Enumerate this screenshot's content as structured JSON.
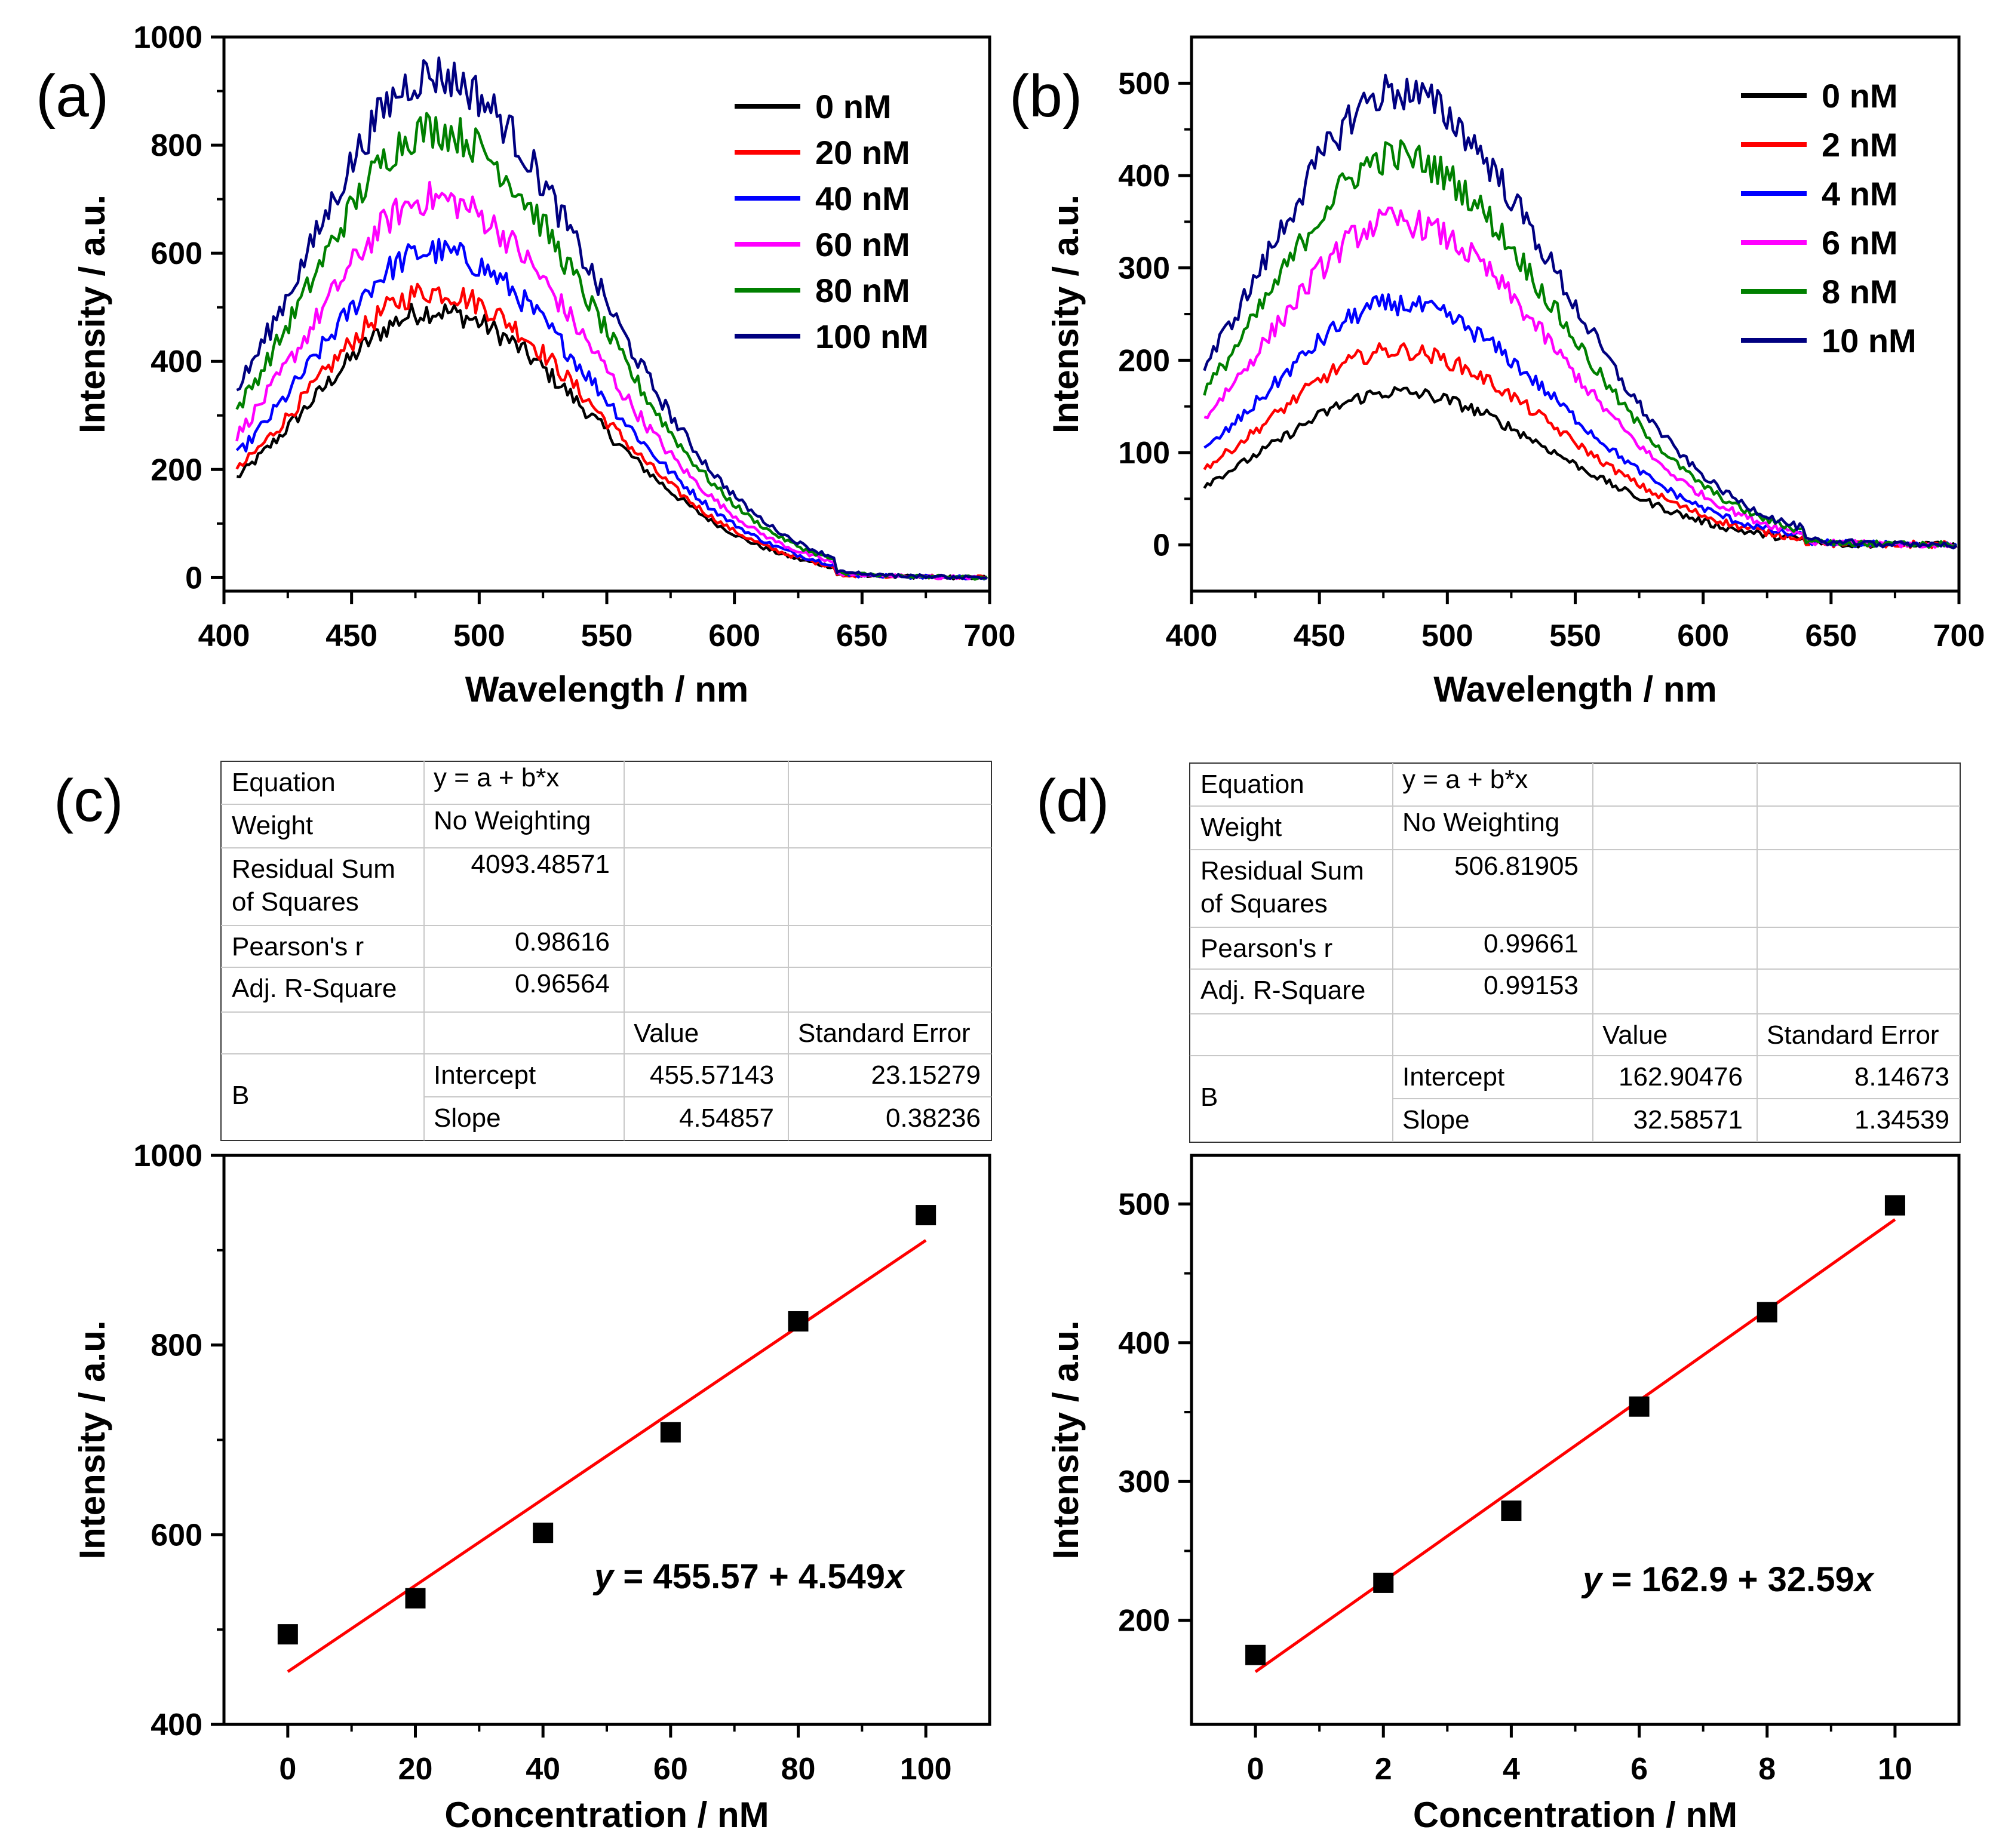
{
  "chart_data": [
    {
      "id": "a",
      "panel_label": "(a)",
      "type": "line",
      "xlabel": "Wavelength / nm",
      "ylabel": "Intensity / a.u.",
      "xlim": [
        400,
        700
      ],
      "ylim": [
        -25,
        1000
      ],
      "xticks": [
        400,
        450,
        500,
        550,
        600,
        650,
        700
      ],
      "yticks": [
        0,
        200,
        400,
        600,
        800,
        1000
      ],
      "legend_position": "top-right",
      "peak_wavelength": 482,
      "series": [
        {
          "name": "0   nM",
          "color": "#000000",
          "peak": 492
        },
        {
          "name": "20 nM",
          "color": "#ff0000",
          "peak": 528
        },
        {
          "name": "40 nM",
          "color": "#0000ff",
          "peak": 602
        },
        {
          "name": "60 nM",
          "color": "#ff00ff",
          "peak": 700
        },
        {
          "name": "80 nM",
          "color": "#008000",
          "peak": 828
        },
        {
          "name": "100 nM",
          "color": "#000080",
          "peak": 928
        }
      ]
    },
    {
      "id": "b",
      "panel_label": "(b)",
      "type": "line",
      "xlabel": "Wavelength / nm",
      "ylabel": "Intensity / a.u.",
      "xlim": [
        400,
        700
      ],
      "ylim": [
        -50,
        550
      ],
      "xticks": [
        400,
        450,
        500,
        550,
        600,
        650,
        700
      ],
      "yticks": [
        0,
        100,
        200,
        300,
        400,
        500
      ],
      "legend_position": "top-right",
      "peak_wavelength": 480,
      "series": [
        {
          "name": "0 nM",
          "color": "#000000",
          "peak": 165
        },
        {
          "name": "2 nM",
          "color": "#ff0000",
          "peak": 210
        },
        {
          "name": "4 nM",
          "color": "#0000ff",
          "peak": 260
        },
        {
          "name": "6 nM",
          "color": "#ff00ff",
          "peak": 350
        },
        {
          "name": "8 nM",
          "color": "#008000",
          "peak": 420
        },
        {
          "name": "10 nM",
          "color": "#000080",
          "peak": 490
        }
      ]
    },
    {
      "id": "c",
      "panel_label": "(c)",
      "type": "scatter",
      "xlabel": "Concentration / nM",
      "ylabel": "Intensity / a.u.",
      "xlim": [
        -10,
        110
      ],
      "ylim": [
        400,
        1000
      ],
      "xticks": [
        0,
        20,
        40,
        60,
        80,
        100
      ],
      "yticks": [
        400,
        600,
        800,
        1000
      ],
      "x": [
        0,
        20,
        40,
        60,
        80,
        100
      ],
      "y": [
        495,
        533,
        602,
        708,
        825,
        937
      ],
      "fit": {
        "intercept": 455.57143,
        "slope": 4.54857,
        "color": "#ff0000"
      },
      "equation_prefix": "y",
      "equation_body": " = 455.57 + 4.549",
      "equation_suffix": "x",
      "table": {
        "rows": [
          {
            "label": "Equation",
            "value": "y = a + b*x",
            "value_align": "left"
          },
          {
            "label": "Weight",
            "value": "No Weighting",
            "value_align": "left"
          },
          {
            "label": "Residual Sum",
            "label2": "of Squares",
            "value": "4093.48571",
            "value_align": "right"
          },
          {
            "label": "Pearson's r",
            "value": "0.98616",
            "value_align": "right"
          },
          {
            "label": "Adj. R-Square",
            "value": "0.96564",
            "value_align": "right"
          }
        ],
        "col_value": "Value",
        "col_error": "Standard Error",
        "group": "B",
        "params": [
          {
            "name": "Intercept",
            "value": "455.57143",
            "error": "23.15279"
          },
          {
            "name": "Slope",
            "value": "4.54857",
            "error": "0.38236"
          }
        ]
      }
    },
    {
      "id": "d",
      "panel_label": "(d)",
      "type": "scatter",
      "xlabel": "Concentration / nM",
      "ylabel": "Intensity / a.u.",
      "xlim": [
        -1,
        11
      ],
      "ylim": [
        125,
        535
      ],
      "xticks": [
        0,
        2,
        4,
        6,
        8,
        10
      ],
      "yticks": [
        200,
        300,
        400,
        500
      ],
      "x": [
        0,
        2,
        4,
        6,
        8,
        10
      ],
      "y": [
        175,
        227,
        279,
        354,
        422,
        499
      ],
      "fit": {
        "intercept": 162.90476,
        "slope": 32.58571,
        "color": "#ff0000"
      },
      "equation_prefix": "y",
      "equation_body": " = 162.9 + 32.59",
      "equation_suffix": "x",
      "table": {
        "rows": [
          {
            "label": "Equation",
            "value": "y = a + b*x",
            "value_align": "left"
          },
          {
            "label": "Weight",
            "value": "No Weighting",
            "value_align": "left"
          },
          {
            "label": "Residual Sum",
            "label2": "of Squares",
            "value": "506.81905",
            "value_align": "right"
          },
          {
            "label": "Pearson's r",
            "value": "0.99661",
            "value_align": "right"
          },
          {
            "label": "Adj. R-Square",
            "value": "0.99153",
            "value_align": "right"
          }
        ],
        "col_value": "Value",
        "col_error": "Standard Error",
        "group": "B",
        "params": [
          {
            "name": "Intercept",
            "value": "162.90476",
            "error": "8.14673"
          },
          {
            "name": "Slope",
            "value": "32.58571",
            "error": "1.34539"
          }
        ]
      }
    }
  ]
}
